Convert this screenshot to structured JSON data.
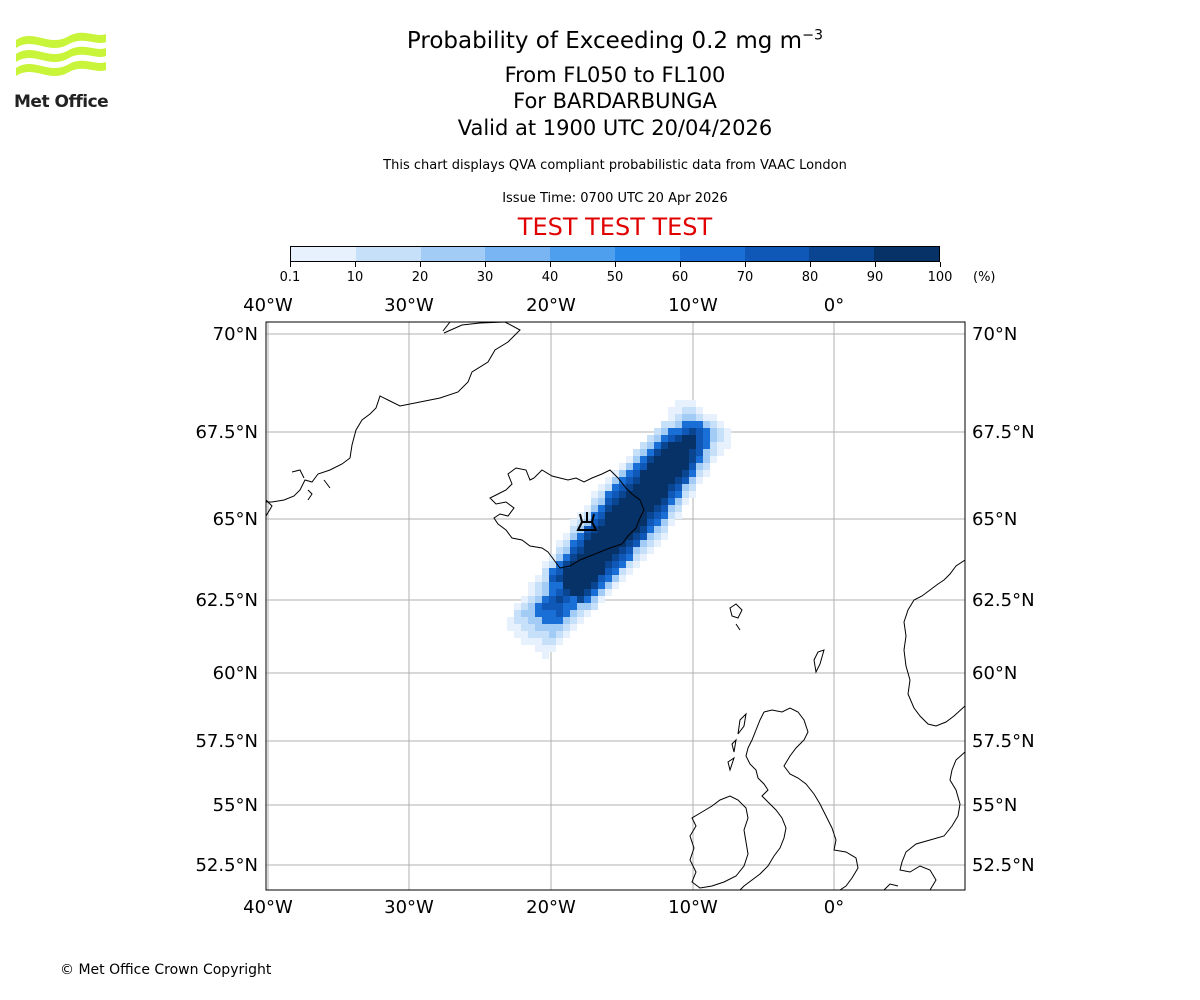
{
  "header": {
    "title_main": "Probability of Exceeding 0.2 mg m",
    "title_sup": "−3",
    "flight_levels": "From FL050 to FL100",
    "volcano": "For BARDARBUNGA",
    "valid_time": "Valid at 1900 UTC 20/04/2026",
    "subtitle": "This chart displays QVA compliant probabilistic data from VAAC London",
    "issue_time": "Issue Time: 0700 UTC 20 Apr 2026",
    "test_banner": "TEST TEST TEST"
  },
  "logo": {
    "text": "Met Office",
    "color": "#c8f53a"
  },
  "colorbar": {
    "labels": [
      "0.1",
      "10",
      "20",
      "30",
      "40",
      "50",
      "60",
      "70",
      "80",
      "90",
      "100"
    ],
    "unit": "(%)",
    "colors": [
      "#e6f1fd",
      "#c6e0fa",
      "#a2ccf6",
      "#78b5f2",
      "#4ea0ee",
      "#2787e8",
      "#1a6fd6",
      "#0f58b8",
      "#0a4592",
      "#063268"
    ]
  },
  "map": {
    "lon_range": [
      -40,
      9.5
    ],
    "lat_range": [
      51.7,
      70.5
    ],
    "lon_ticks": [
      "40°W",
      "30°W",
      "20°W",
      "10°W",
      "0°"
    ],
    "lat_ticks": [
      "70°N",
      "67.5°N",
      "65°N",
      "62.5°N",
      "60°N",
      "57.5°N",
      "55°N",
      "52.5°N"
    ],
    "gridline_color": "#b0b0b0",
    "volcano_symbol": "volcano-icon"
  },
  "footer": {
    "copyright": "© Met Office Crown Copyright"
  }
}
